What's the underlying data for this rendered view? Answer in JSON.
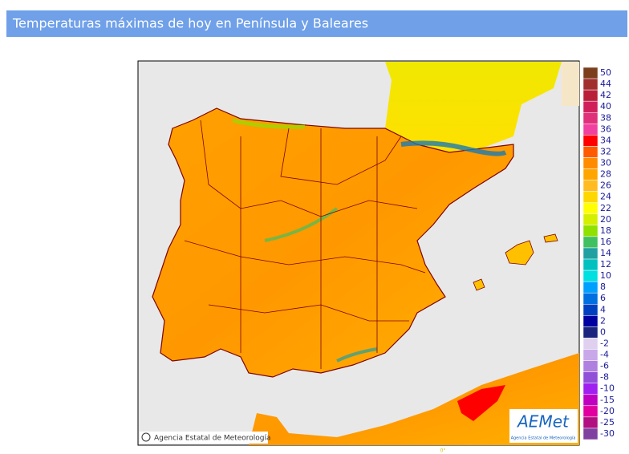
{
  "header": {
    "title": "Temperaturas máximas de hoy en Península y Baleares"
  },
  "map": {
    "credit": "Agencia Estatal de Meteorología",
    "logo": "AEMet",
    "logo_subtitle": "Agencia Estatal de Meteorología",
    "meridian_label": "0°"
  },
  "legend": {
    "items": [
      {
        "label": "50",
        "color": "#7b3f1e"
      },
      {
        "label": "44",
        "color": "#a0302e"
      },
      {
        "label": "42",
        "color": "#b8203a"
      },
      {
        "label": "40",
        "color": "#d0205a"
      },
      {
        "label": "38",
        "color": "#e0307a"
      },
      {
        "label": "36",
        "color": "#f040a0"
      },
      {
        "label": "34",
        "color": "#ff0000"
      },
      {
        "label": "32",
        "color": "#ff5a00"
      },
      {
        "label": "30",
        "color": "#ff8c00"
      },
      {
        "label": "28",
        "color": "#ffa500"
      },
      {
        "label": "26",
        "color": "#ffbb20"
      },
      {
        "label": "24",
        "color": "#ffd700"
      },
      {
        "label": "22",
        "color": "#ffff00"
      },
      {
        "label": "20",
        "color": "#d4f000"
      },
      {
        "label": "18",
        "color": "#90e000"
      },
      {
        "label": "16",
        "color": "#40c060"
      },
      {
        "label": "14",
        "color": "#20a0a0"
      },
      {
        "label": "12",
        "color": "#00c0c0"
      },
      {
        "label": "10",
        "color": "#00e0e0"
      },
      {
        "label": "8",
        "color": "#00a0ff"
      },
      {
        "label": "6",
        "color": "#0070e0"
      },
      {
        "label": "4",
        "color": "#0040c0"
      },
      {
        "label": "2",
        "color": "#0000a0"
      },
      {
        "label": "0",
        "color": "#1a237e"
      },
      {
        "label": "-2",
        "color": "#e0d0f0"
      },
      {
        "label": "-4",
        "color": "#c8a8e8"
      },
      {
        "label": "-6",
        "color": "#b080e0"
      },
      {
        "label": "-8",
        "color": "#9050d8"
      },
      {
        "label": "-10",
        "color": "#a020f0"
      },
      {
        "label": "-15",
        "color": "#c000c0"
      },
      {
        "label": "-20",
        "color": "#e000a0"
      },
      {
        "label": "-25",
        "color": "#b01080"
      },
      {
        "label": "-30",
        "color": "#8040a0"
      }
    ]
  }
}
